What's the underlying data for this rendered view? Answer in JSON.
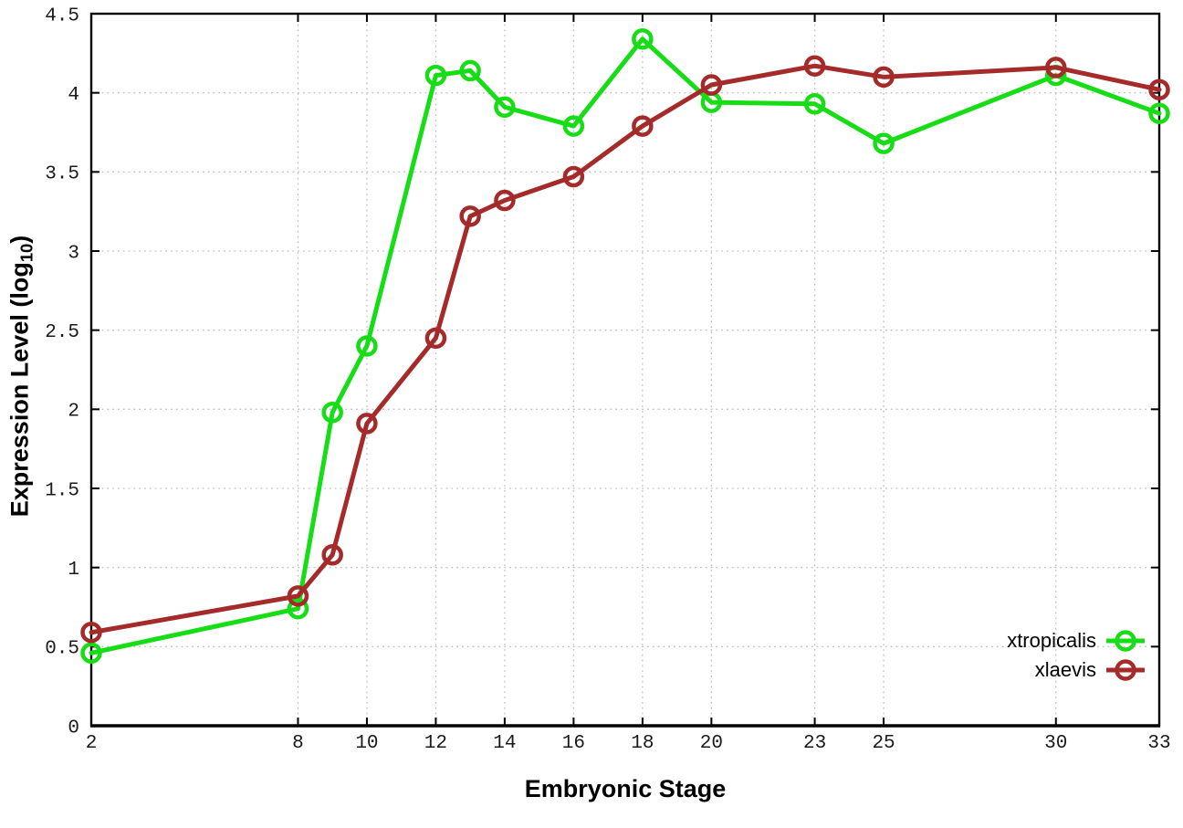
{
  "figure": {
    "x_axis_label": "Embryonic Stage",
    "y_axis_label": {
      "prefix": "Expression Level (log",
      "sub": "10",
      "suffix": ")"
    }
  },
  "chart_data": {
    "type": "line",
    "title": "",
    "xlabel": "Embryonic Stage",
    "ylabel": "Expression Level (log10)",
    "x": [
      2,
      8,
      9,
      10,
      12,
      13,
      14,
      16,
      18,
      20,
      23,
      25,
      30,
      33
    ],
    "series": [
      {
        "name": "xtropicalis",
        "color": "#16dd16",
        "values": [
          0.46,
          0.74,
          1.98,
          2.4,
          4.11,
          4.14,
          3.91,
          3.79,
          4.34,
          3.94,
          3.93,
          3.68,
          4.11,
          3.87
        ]
      },
      {
        "name": "xlaevis",
        "color": "#a52a2a",
        "values": [
          0.59,
          0.82,
          1.08,
          1.91,
          2.45,
          3.22,
          3.32,
          3.47,
          3.79,
          4.05,
          4.17,
          4.1,
          4.16,
          4.02
        ]
      }
    ],
    "x_ticks": {
      "values": [
        2,
        8,
        10,
        12,
        14,
        16,
        18,
        20,
        23,
        25,
        30,
        33
      ],
      "labels": [
        "2",
        "8",
        "10",
        "12",
        "14",
        "16",
        "18",
        "20",
        "23",
        "25",
        "30",
        "33"
      ]
    },
    "y_ticks": {
      "values": [
        0,
        0.5,
        1,
        1.5,
        2,
        2.5,
        3,
        3.5,
        4,
        4.5
      ],
      "labels": [
        "0",
        "0.5",
        "1",
        "1.5",
        "2",
        "2.5",
        "3",
        "3.5",
        "4",
        "4.5"
      ]
    },
    "xlim": [
      2,
      33
    ],
    "ylim": [
      0,
      4.5
    ],
    "grid": true,
    "legend_position": "bottom-right",
    "style": {
      "grid_color": "#c2c2c2",
      "axis_color": "#000000",
      "tick_label_color": "#1a1a1a",
      "line_width": 5,
      "marker": "open-circle",
      "marker_radius": 9.5,
      "marker_stroke": 4.5
    }
  }
}
